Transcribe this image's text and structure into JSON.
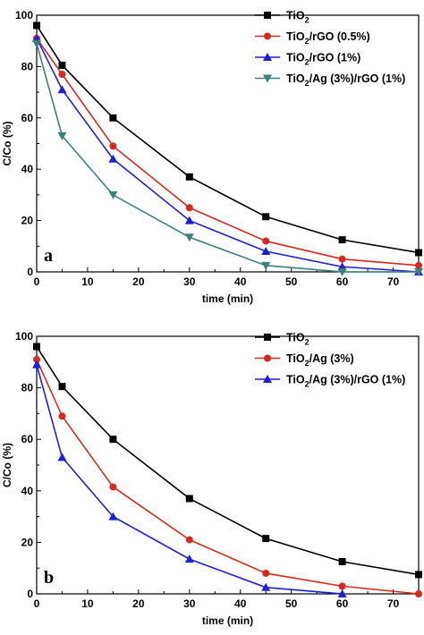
{
  "chart_data": [
    {
      "type": "line",
      "panel_label": "a",
      "xlabel": "time (min)",
      "ylabel": "C/Co (%)",
      "xlim": [
        0,
        75
      ],
      "ylim": [
        0,
        100
      ],
      "xticks": [
        0,
        10,
        20,
        30,
        40,
        50,
        60,
        70
      ],
      "yticks": [
        0,
        20,
        40,
        60,
        80,
        100
      ],
      "grid": false,
      "legend_position": "top-right",
      "x": [
        0,
        5,
        15,
        30,
        45,
        60,
        75
      ],
      "series": [
        {
          "name": "TiO2",
          "name_main": "TiO",
          "name_sub": "2",
          "name_rest": "",
          "color": "#000000",
          "marker": "square",
          "values": [
            96,
            80.5,
            60,
            37,
            21.5,
            12.5,
            7.5
          ]
        },
        {
          "name": "TiO2/rGO (0.5%)",
          "name_main": "TiO",
          "name_sub": "2",
          "name_rest": "/rGO (0.5%)",
          "color": "#d62a20",
          "marker": "circle",
          "values": [
            91,
            77,
            49,
            25,
            12,
            5,
            2.5
          ]
        },
        {
          "name": "TiO2/rGO (1%)",
          "name_main": "TiO",
          "name_sub": "2",
          "name_rest": "/rGO (1%)",
          "color": "#1f1fd6",
          "marker": "triangle-up",
          "values": [
            91,
            71,
            44,
            20,
            8,
            2,
            0
          ]
        },
        {
          "name": "TiO2/Ag (3%)/rGO (1%)",
          "name_main": "TiO",
          "name_sub": "2",
          "name_rest": "/Ag (3%)/rGO (1%)",
          "color": "#3f7f7c",
          "marker": "triangle-down",
          "values": [
            89,
            53,
            30,
            13.5,
            2.5,
            0,
            0
          ]
        }
      ]
    },
    {
      "type": "line",
      "panel_label": "b",
      "xlabel": "time (min)",
      "ylabel": "C/Co (%)",
      "xlim": [
        0,
        75
      ],
      "ylim": [
        0,
        100
      ],
      "xticks": [
        0,
        10,
        20,
        30,
        40,
        50,
        60,
        70
      ],
      "yticks": [
        0,
        20,
        40,
        60,
        80,
        100
      ],
      "grid": false,
      "legend_position": "top-right",
      "x": [
        0,
        5,
        15,
        30,
        45,
        60,
        75
      ],
      "series": [
        {
          "name": "TiO2",
          "name_main": "TiO",
          "name_sub": "2",
          "name_rest": "",
          "color": "#000000",
          "marker": "square",
          "values": [
            96,
            80.5,
            60,
            37,
            21.5,
            12.5,
            7.5
          ]
        },
        {
          "name": "TiO2/Ag (3%)",
          "name_main": "TiO",
          "name_sub": "2",
          "name_rest": "/Ag (3%)",
          "color": "#d62a20",
          "marker": "circle",
          "values": [
            91,
            69,
            41.5,
            21,
            8,
            3,
            0
          ]
        },
        {
          "name": "TiO2/Ag (3%)/rGO (1%)",
          "name_main": "TiO",
          "name_sub": "2",
          "name_rest": "/Ag (3%)/rGO (1%)",
          "color": "#1f1fd6",
          "marker": "triangle-up",
          "values": [
            89,
            53,
            30,
            13.5,
            2.5,
            0,
            null
          ]
        }
      ]
    }
  ]
}
